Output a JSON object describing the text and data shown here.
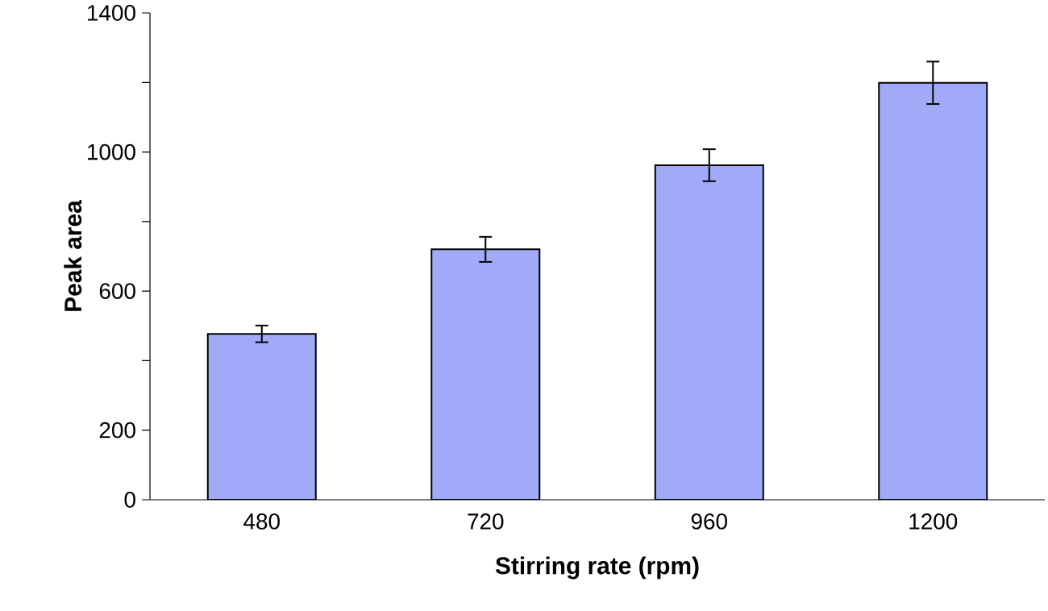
{
  "chart_data": {
    "type": "bar",
    "xlabel": "Stirring rate (rpm)",
    "ylabel": "Peak area",
    "categories": [
      "480",
      "720",
      "960",
      "1200"
    ],
    "values": [
      477,
      720,
      962,
      1199
    ],
    "errors": [
      24,
      36,
      46,
      61
    ],
    "color": "#a0aaf8",
    "ylim": [
      0,
      1400
    ],
    "yticks": [
      0,
      200,
      {
        "value": 400,
        "label": null
      },
      600,
      {
        "value": 800,
        "label": null
      },
      1000,
      {
        "value": 1200,
        "label": null
      },
      1400
    ],
    "grid": false
  }
}
